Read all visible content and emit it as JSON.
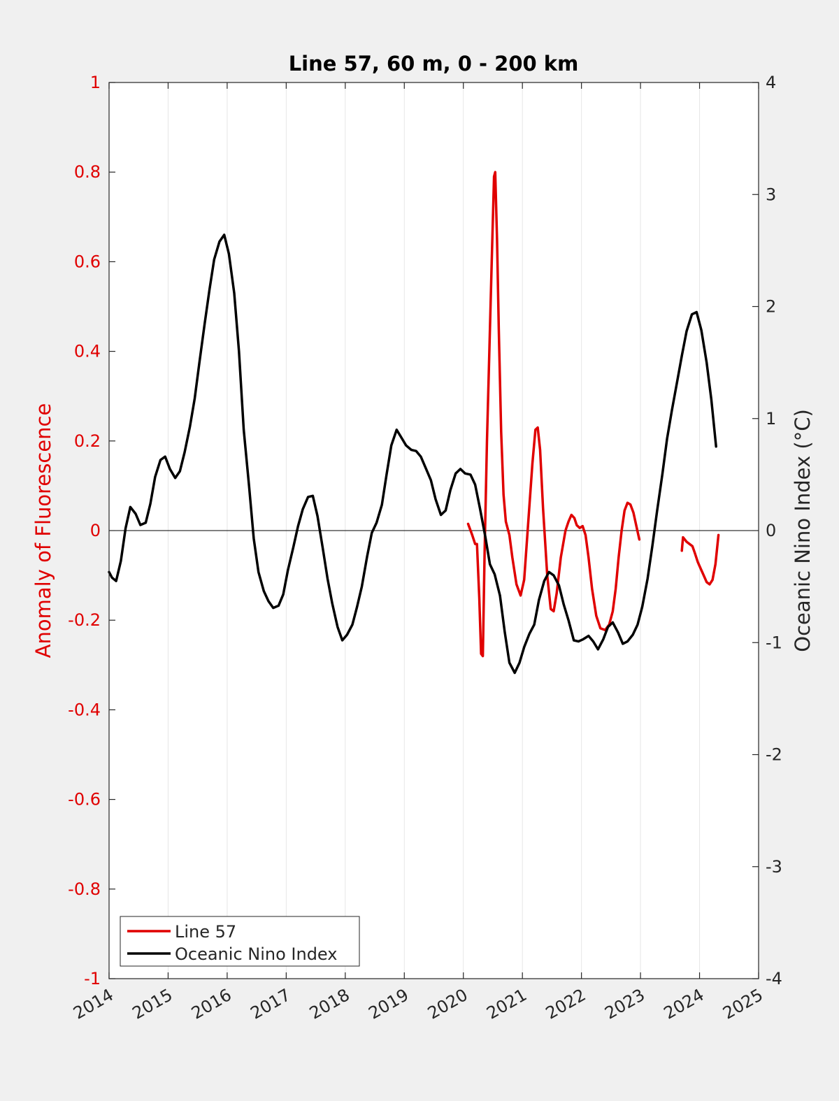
{
  "chart_data": {
    "type": "line",
    "title": "Line 57, 60 m, 0 - 200 km",
    "xlabel": "",
    "ylabel_left": "Anomaly of Fluorescence",
    "ylabel_right": "Oceanic Nino Index (°C)",
    "xlim": [
      2014,
      2025
    ],
    "ylim_left": [
      -1,
      1
    ],
    "ylim_right": [
      -4,
      4
    ],
    "x_ticks": [
      "2014",
      "2015",
      "2016",
      "2017",
      "2018",
      "2019",
      "2020",
      "2021",
      "2022",
      "2023",
      "2024",
      "2025"
    ],
    "y_ticks_left": [
      "1",
      "0.8",
      "0.6",
      "0.4",
      "0.2",
      "0",
      "-0.2",
      "-0.4",
      "-0.6",
      "-0.8",
      "-1"
    ],
    "y_ticks_right": [
      "4",
      "3",
      "2",
      "1",
      "0",
      "-1",
      "-2",
      "-3",
      "-4"
    ],
    "grid": "vertical",
    "zero_line": true,
    "legend_position": "bottom-left",
    "colors": {
      "line57": "#e00000",
      "oni": "#000000",
      "left_axis": "#e00000",
      "right_axis": "#262626",
      "grid": "#e6e6e6",
      "background": "#f0f0f0",
      "plot_background": "#ffffff"
    },
    "series": [
      {
        "name": "Line 57",
        "axis": "left",
        "color": "#e00000",
        "segments": [
          [
            [
              2020.08,
              0.015
            ],
            [
              2020.15,
              -0.01
            ],
            [
              2020.2,
              -0.03
            ],
            [
              2020.23,
              -0.03
            ],
            [
              2020.27,
              -0.15
            ],
            [
              2020.3,
              -0.275
            ],
            [
              2020.33,
              -0.28
            ],
            [
              2020.36,
              -0.05
            ],
            [
              2020.4,
              0.2
            ],
            [
              2020.44,
              0.4
            ],
            [
              2020.48,
              0.6
            ],
            [
              2020.52,
              0.79
            ],
            [
              2020.54,
              0.8
            ],
            [
              2020.57,
              0.65
            ],
            [
              2020.6,
              0.45
            ],
            [
              2020.64,
              0.22
            ],
            [
              2020.68,
              0.08
            ],
            [
              2020.72,
              0.02
            ],
            [
              2020.78,
              -0.01
            ],
            [
              2020.83,
              -0.06
            ],
            [
              2020.9,
              -0.12
            ],
            [
              2020.97,
              -0.145
            ],
            [
              2021.03,
              -0.11
            ],
            [
              2021.1,
              0.02
            ],
            [
              2021.17,
              0.15
            ],
            [
              2021.22,
              0.225
            ],
            [
              2021.26,
              0.23
            ],
            [
              2021.3,
              0.18
            ],
            [
              2021.35,
              0.05
            ],
            [
              2021.42,
              -0.1
            ],
            [
              2021.48,
              -0.175
            ],
            [
              2021.53,
              -0.18
            ],
            [
              2021.58,
              -0.14
            ],
            [
              2021.65,
              -0.06
            ],
            [
              2021.73,
              0.0
            ],
            [
              2021.78,
              0.02
            ],
            [
              2021.83,
              0.035
            ],
            [
              2021.88,
              0.028
            ],
            [
              2021.92,
              0.012
            ],
            [
              2021.97,
              0.006
            ],
            [
              2022.02,
              0.01
            ],
            [
              2022.07,
              -0.01
            ],
            [
              2022.12,
              -0.06
            ],
            [
              2022.18,
              -0.13
            ],
            [
              2022.25,
              -0.19
            ],
            [
              2022.32,
              -0.218
            ],
            [
              2022.4,
              -0.222
            ],
            [
              2022.47,
              -0.21
            ],
            [
              2022.53,
              -0.18
            ],
            [
              2022.58,
              -0.13
            ],
            [
              2022.63,
              -0.06
            ],
            [
              2022.68,
              0.0
            ],
            [
              2022.73,
              0.045
            ],
            [
              2022.78,
              0.062
            ],
            [
              2022.83,
              0.058
            ],
            [
              2022.88,
              0.04
            ],
            [
              2022.93,
              0.01
            ],
            [
              2022.98,
              -0.02
            ]
          ],
          [
            [
              2023.7,
              -0.045
            ],
            [
              2023.72,
              -0.015
            ],
            [
              2023.78,
              -0.025
            ],
            [
              2023.83,
              -0.03
            ],
            [
              2023.88,
              -0.035
            ],
            [
              2023.92,
              -0.05
            ],
            [
              2023.97,
              -0.07
            ],
            [
              2024.02,
              -0.085
            ],
            [
              2024.07,
              -0.1
            ],
            [
              2024.12,
              -0.115
            ],
            [
              2024.17,
              -0.12
            ],
            [
              2024.22,
              -0.11
            ],
            [
              2024.27,
              -0.075
            ],
            [
              2024.32,
              -0.01
            ]
          ]
        ]
      },
      {
        "name": "Oceanic Nino Index",
        "axis": "right",
        "color": "#000000",
        "segments": [
          [
            [
              2014.0,
              -0.37
            ],
            [
              2014.05,
              -0.42
            ],
            [
              2014.12,
              -0.45
            ],
            [
              2014.2,
              -0.27
            ],
            [
              2014.28,
              0.02
            ],
            [
              2014.36,
              0.21
            ],
            [
              2014.45,
              0.15
            ],
            [
              2014.53,
              0.05
            ],
            [
              2014.62,
              0.07
            ],
            [
              2014.7,
              0.24
            ],
            [
              2014.78,
              0.48
            ],
            [
              2014.87,
              0.63
            ],
            [
              2014.95,
              0.66
            ],
            [
              2015.03,
              0.55
            ],
            [
              2015.12,
              0.47
            ],
            [
              2015.2,
              0.53
            ],
            [
              2015.28,
              0.7
            ],
            [
              2015.37,
              0.93
            ],
            [
              2015.45,
              1.18
            ],
            [
              2015.53,
              1.5
            ],
            [
              2015.62,
              1.85
            ],
            [
              2015.7,
              2.15
            ],
            [
              2015.78,
              2.42
            ],
            [
              2015.87,
              2.58
            ],
            [
              2015.95,
              2.64
            ],
            [
              2016.03,
              2.47
            ],
            [
              2016.12,
              2.12
            ],
            [
              2016.2,
              1.6
            ],
            [
              2016.28,
              0.9
            ],
            [
              2016.37,
              0.4
            ],
            [
              2016.45,
              -0.07
            ],
            [
              2016.53,
              -0.37
            ],
            [
              2016.62,
              -0.54
            ],
            [
              2016.7,
              -0.63
            ],
            [
              2016.78,
              -0.69
            ],
            [
              2016.87,
              -0.67
            ],
            [
              2016.95,
              -0.57
            ],
            [
              2017.03,
              -0.35
            ],
            [
              2017.12,
              -0.15
            ],
            [
              2017.2,
              0.04
            ],
            [
              2017.28,
              0.19
            ],
            [
              2017.37,
              0.3
            ],
            [
              2017.45,
              0.31
            ],
            [
              2017.53,
              0.13
            ],
            [
              2017.62,
              -0.16
            ],
            [
              2017.7,
              -0.43
            ],
            [
              2017.78,
              -0.65
            ],
            [
              2017.87,
              -0.86
            ],
            [
              2017.95,
              -0.98
            ],
            [
              2018.03,
              -0.93
            ],
            [
              2018.12,
              -0.84
            ],
            [
              2018.2,
              -0.68
            ],
            [
              2018.28,
              -0.5
            ],
            [
              2018.37,
              -0.23
            ],
            [
              2018.45,
              -0.02
            ],
            [
              2018.53,
              0.07
            ],
            [
              2018.62,
              0.23
            ],
            [
              2018.7,
              0.5
            ],
            [
              2018.78,
              0.76
            ],
            [
              2018.87,
              0.9
            ],
            [
              2018.95,
              0.83
            ],
            [
              2019.03,
              0.76
            ],
            [
              2019.12,
              0.72
            ],
            [
              2019.2,
              0.71
            ],
            [
              2019.28,
              0.66
            ],
            [
              2019.37,
              0.55
            ],
            [
              2019.45,
              0.45
            ],
            [
              2019.53,
              0.28
            ],
            [
              2019.62,
              0.14
            ],
            [
              2019.7,
              0.18
            ],
            [
              2019.78,
              0.36
            ],
            [
              2019.87,
              0.51
            ],
            [
              2019.95,
              0.55
            ],
            [
              2020.03,
              0.51
            ],
            [
              2020.12,
              0.5
            ],
            [
              2020.2,
              0.41
            ],
            [
              2020.28,
              0.2
            ],
            [
              2020.37,
              -0.05
            ],
            [
              2020.45,
              -0.3
            ],
            [
              2020.53,
              -0.39
            ],
            [
              2020.62,
              -0.58
            ],
            [
              2020.7,
              -0.9
            ],
            [
              2020.78,
              -1.18
            ],
            [
              2020.87,
              -1.27
            ],
            [
              2020.95,
              -1.18
            ],
            [
              2021.03,
              -1.04
            ],
            [
              2021.12,
              -0.92
            ],
            [
              2021.2,
              -0.84
            ],
            [
              2021.28,
              -0.62
            ],
            [
              2021.37,
              -0.45
            ],
            [
              2021.45,
              -0.37
            ],
            [
              2021.53,
              -0.4
            ],
            [
              2021.62,
              -0.49
            ],
            [
              2021.7,
              -0.66
            ],
            [
              2021.78,
              -0.8
            ],
            [
              2021.87,
              -0.98
            ],
            [
              2021.95,
              -0.99
            ],
            [
              2022.03,
              -0.97
            ],
            [
              2022.12,
              -0.94
            ],
            [
              2022.2,
              -0.99
            ],
            [
              2022.28,
              -1.06
            ],
            [
              2022.37,
              -0.97
            ],
            [
              2022.45,
              -0.86
            ],
            [
              2022.53,
              -0.82
            ],
            [
              2022.62,
              -0.91
            ],
            [
              2022.7,
              -1.01
            ],
            [
              2022.78,
              -0.99
            ],
            [
              2022.87,
              -0.93
            ],
            [
              2022.95,
              -0.84
            ],
            [
              2023.03,
              -0.68
            ],
            [
              2023.12,
              -0.43
            ],
            [
              2023.2,
              -0.14
            ],
            [
              2023.28,
              0.17
            ],
            [
              2023.37,
              0.5
            ],
            [
              2023.45,
              0.82
            ],
            [
              2023.53,
              1.07
            ],
            [
              2023.62,
              1.33
            ],
            [
              2023.7,
              1.56
            ],
            [
              2023.78,
              1.78
            ],
            [
              2023.87,
              1.93
            ],
            [
              2023.95,
              1.95
            ],
            [
              2024.03,
              1.79
            ],
            [
              2024.12,
              1.5
            ],
            [
              2024.2,
              1.17
            ],
            [
              2024.28,
              0.75
            ]
          ]
        ]
      }
    ]
  }
}
